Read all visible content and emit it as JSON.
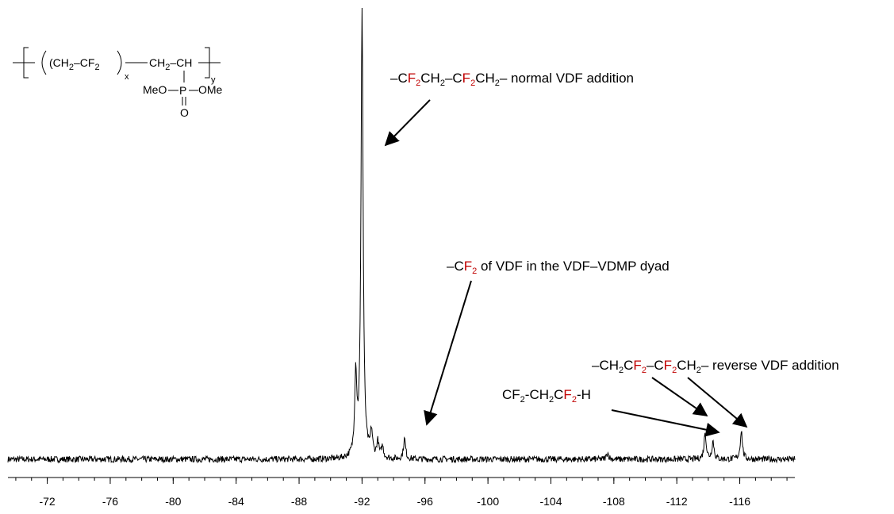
{
  "chart_data": {
    "type": "line",
    "title": "",
    "xlabel": "",
    "ylabel": "",
    "x_reversed": true,
    "xlim": [
      -69.5,
      -119.5
    ],
    "x_ticks": [
      -72,
      -76,
      -80,
      -84,
      -88,
      -92,
      -96,
      -100,
      -104,
      -108,
      -112,
      -116
    ],
    "x_tick_labels": [
      "-72",
      "-76",
      "-80",
      "-84",
      "-88",
      "-92",
      "-96",
      "-100",
      "-104",
      "-108",
      "-112",
      "-116"
    ],
    "ylim": [
      0,
      100
    ],
    "grid": false,
    "peaks": [
      {
        "x": -91.6,
        "height": 18
      },
      {
        "x": -92.0,
        "height": 100
      },
      {
        "x": -92.6,
        "height": 5.5
      },
      {
        "x": -93.0,
        "height": 3.5
      },
      {
        "x": -93.3,
        "height": 2.5
      },
      {
        "x": -94.7,
        "height": 4.5
      },
      {
        "x": -107.6,
        "height": 1.5
      },
      {
        "x": -113.8,
        "height": 6
      },
      {
        "x": -114.3,
        "height": 4
      },
      {
        "x": -116.1,
        "height": 6.5
      }
    ],
    "annotations": [
      {
        "id": "normal",
        "parts": [
          "–C",
          "F",
          "2",
          "CH",
          "2",
          "–C",
          "F",
          "2",
          "CH",
          "2",
          "– normal VDF addition"
        ],
        "points_to_x": -92.0
      },
      {
        "id": "dyad",
        "parts": [
          "–C",
          "F",
          "2",
          " of VDF in the VDF–VDMP dyad"
        ],
        "points_to_x": -95.0
      },
      {
        "id": "reverse",
        "parts": [
          "–CH",
          "2",
          "C",
          "F",
          "2",
          "–C",
          "F",
          "2",
          "CH",
          "2",
          "– reverse VDF addition"
        ],
        "points_to_x": [
          -113.8,
          -116.1
        ]
      },
      {
        "id": "endgroup",
        "parts": [
          "CF",
          "2",
          "-CH",
          "2",
          "C",
          "F",
          "2",
          "-H"
        ],
        "points_to_x": -114.3
      }
    ],
    "highlight_color": "#c00000"
  },
  "structure": {
    "unit_x": [
      "(CH",
      "2",
      "–CF",
      "2",
      ")"
    ],
    "x_label": "x",
    "unit_y": [
      "CH",
      "2",
      "–CH"
    ],
    "y_label": "y",
    "phosphonate": [
      "MeO",
      "P",
      "OMe"
    ],
    "oxo": "O"
  }
}
